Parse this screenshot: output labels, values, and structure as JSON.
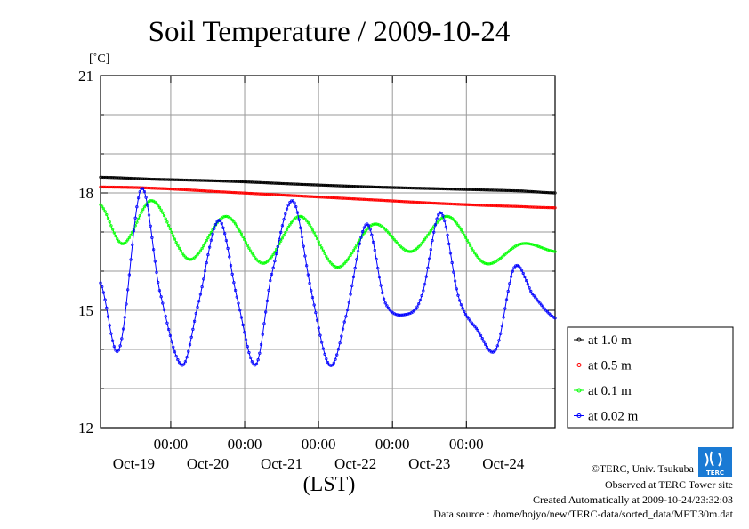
{
  "chart_data": {
    "type": "line",
    "title": "Soil Temperature / 2009-10-24",
    "ylabel": "[˚C]",
    "xlabel": "(LST)",
    "ylim": [
      12,
      21
    ],
    "yticks": [
      "12",
      "15",
      "18",
      "21"
    ],
    "x_range_days": [
      18.8,
      24.95
    ],
    "x_tick_times": [
      "00:00",
      "00:00",
      "00:00",
      "00:00",
      "00:00"
    ],
    "x_tick_positions": [
      19.75,
      20.75,
      21.75,
      22.75,
      23.75
    ],
    "x_day_labels": [
      "Oct-19",
      "Oct-20",
      "Oct-21",
      "Oct-22",
      "Oct-23",
      "Oct-24"
    ],
    "x_day_label_positions": [
      19.25,
      20.25,
      21.25,
      22.25,
      23.25,
      24.25
    ],
    "grid": true,
    "legend_position": "right",
    "series": [
      {
        "name": "at 1.0 m",
        "color": "#000000",
        "x": [
          18.8,
          19.5,
          20.5,
          21.5,
          22.5,
          23.5,
          24.5,
          24.95
        ],
        "values": [
          18.4,
          18.35,
          18.3,
          18.22,
          18.15,
          18.1,
          18.05,
          18.0
        ]
      },
      {
        "name": "at 0.5 m",
        "color": "#ff0000",
        "x": [
          18.8,
          19.5,
          20.5,
          21.5,
          22.5,
          23.5,
          24.5,
          24.95
        ],
        "values": [
          18.15,
          18.12,
          18.02,
          17.92,
          17.82,
          17.72,
          17.65,
          17.62
        ]
      },
      {
        "name": "at 0.1 m",
        "color": "#00ff00",
        "x": [
          18.8,
          19.1,
          19.5,
          20.0,
          20.5,
          21.0,
          21.5,
          22.0,
          22.5,
          23.0,
          23.5,
          24.0,
          24.5,
          24.95
        ],
        "values": [
          17.7,
          16.7,
          17.8,
          16.3,
          17.4,
          16.2,
          17.4,
          16.1,
          17.2,
          16.5,
          17.4,
          16.2,
          16.7,
          16.5
        ],
        "x_points": [
          18.8,
          19.1,
          19.5,
          20.0,
          20.5,
          21.0,
          21.5,
          22.0,
          22.5,
          23.0,
          23.5,
          24.0,
          24.5,
          24.95
        ]
      },
      {
        "name": "at 0.02 m",
        "color": "#0000ff",
        "x": [
          18.8,
          19.05,
          19.35,
          19.6,
          19.9,
          20.1,
          20.4,
          20.65,
          20.9,
          21.1,
          21.4,
          21.65,
          21.9,
          22.1,
          22.4,
          22.65,
          22.95,
          23.15,
          23.4,
          23.65,
          23.9,
          24.15,
          24.4,
          24.65,
          24.95
        ],
        "values": [
          15.7,
          14.0,
          18.1,
          15.5,
          13.6,
          15.0,
          17.3,
          15.3,
          13.6,
          15.8,
          17.8,
          15.5,
          13.6,
          14.7,
          17.2,
          15.2,
          14.9,
          15.4,
          17.5,
          15.3,
          14.5,
          14.0,
          16.1,
          15.4,
          14.8
        ]
      }
    ]
  },
  "credits": [
    "©TERC, Univ. Tsukuba",
    "Observed at TERC Tower site",
    "Created Automatically at 2009-10-24/23:32:03",
    "Data source : /home/hojyo/new/TERC-data/sorted_data/MET.30m.dat"
  ],
  "logo_text": "TERC"
}
